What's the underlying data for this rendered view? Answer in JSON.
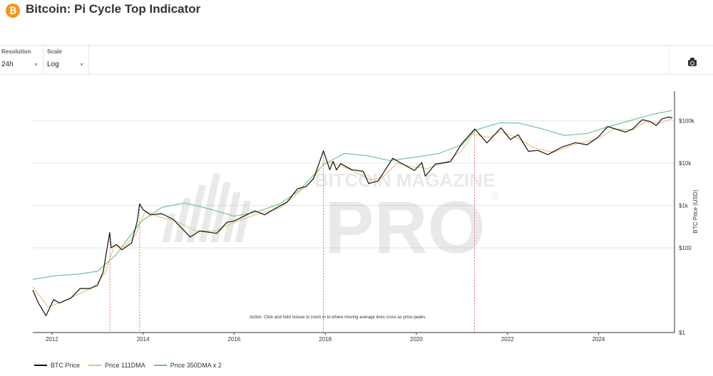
{
  "header": {
    "title": "Bitcoin: Pi Cycle Top Indicator",
    "logo_glyph": "₿",
    "logo_icon": "bitcoin-logo-icon"
  },
  "controls": {
    "resolution": {
      "label": "Resolution",
      "value": "24h"
    },
    "scale": {
      "label": "Scale",
      "value": "Log"
    },
    "camera_icon": "camera-icon"
  },
  "watermark": {
    "line1": "BITCOIN MAGAZINE",
    "line2": "PRO",
    "mark": "®"
  },
  "chart_data": {
    "type": "line",
    "title": "",
    "xlabel": "",
    "ylabel": "BTC Price (USD)",
    "y_scale": "log",
    "x_range": [
      "2011-08-01",
      "2025-09-01"
    ],
    "ylim": [
      1,
      500000
    ],
    "y_ticks": [
      1,
      100,
      1000,
      10000,
      100000
    ],
    "y_tick_labels": [
      "$1",
      "$100",
      "$1k",
      "$10k",
      "$100k"
    ],
    "x_tick_labels": [
      "2012",
      "2014",
      "2016",
      "2018",
      "2020",
      "2022",
      "2024"
    ],
    "annotation": "Action: Click and hold mouse to zoom in to where moving average lines cross as price peaks.",
    "top_signals": [
      "2013-04-10",
      "2013-12-05",
      "2017-12-17",
      "2021-04-12"
    ],
    "legend_position": "bottom-left",
    "grid": "horizontal",
    "series": [
      {
        "name": "BTC Price",
        "color": "#111111",
        "points": [
          [
            "2011-08-01",
            10
          ],
          [
            "2011-09-15",
            5
          ],
          [
            "2011-11-15",
            2.5
          ],
          [
            "2012-01-15",
            6
          ],
          [
            "2012-03-01",
            5
          ],
          [
            "2012-06-01",
            6.5
          ],
          [
            "2012-08-15",
            11
          ],
          [
            "2012-11-01",
            11
          ],
          [
            "2013-01-01",
            13
          ],
          [
            "2013-02-15",
            27
          ],
          [
            "2013-04-09",
            230
          ],
          [
            "2013-04-20",
            100
          ],
          [
            "2013-06-01",
            120
          ],
          [
            "2013-07-15",
            90
          ],
          [
            "2013-10-01",
            130
          ],
          [
            "2013-11-15",
            420
          ],
          [
            "2013-12-05",
            1100
          ],
          [
            "2014-01-01",
            800
          ],
          [
            "2014-03-01",
            600
          ],
          [
            "2014-06-01",
            640
          ],
          [
            "2014-09-01",
            470
          ],
          [
            "2015-01-14",
            180
          ],
          [
            "2015-04-01",
            250
          ],
          [
            "2015-08-15",
            220
          ],
          [
            "2015-11-04",
            400
          ],
          [
            "2016-01-01",
            430
          ],
          [
            "2016-06-15",
            750
          ],
          [
            "2016-09-01",
            600
          ],
          [
            "2016-12-31",
            970
          ],
          [
            "2017-03-01",
            1200
          ],
          [
            "2017-05-25",
            2500
          ],
          [
            "2017-08-01",
            2800
          ],
          [
            "2017-10-01",
            4400
          ],
          [
            "2017-12-17",
            19500
          ],
          [
            "2018-02-06",
            7000
          ],
          [
            "2018-03-05",
            11000
          ],
          [
            "2018-04-01",
            6900
          ],
          [
            "2018-05-05",
            9700
          ],
          [
            "2018-08-01",
            7000
          ],
          [
            "2018-11-01",
            6400
          ],
          [
            "2018-12-15",
            3300
          ],
          [
            "2019-03-01",
            3800
          ],
          [
            "2019-06-26",
            13000
          ],
          [
            "2019-09-01",
            10000
          ],
          [
            "2019-12-17",
            6700
          ],
          [
            "2020-02-14",
            10300
          ],
          [
            "2020-03-13",
            4900
          ],
          [
            "2020-06-01",
            9500
          ],
          [
            "2020-10-01",
            10800
          ],
          [
            "2020-12-31",
            29000
          ],
          [
            "2021-04-14",
            64000
          ],
          [
            "2021-07-20",
            30000
          ],
          [
            "2021-11-10",
            68000
          ],
          [
            "2022-01-24",
            36000
          ],
          [
            "2022-03-28",
            47000
          ],
          [
            "2022-06-18",
            19000
          ],
          [
            "2022-09-01",
            20000
          ],
          [
            "2022-11-21",
            15800
          ],
          [
            "2023-03-15",
            24000
          ],
          [
            "2023-07-01",
            30500
          ],
          [
            "2023-10-01",
            27000
          ],
          [
            "2024-01-01",
            42000
          ],
          [
            "2024-03-14",
            73000
          ],
          [
            "2024-08-05",
            54000
          ],
          [
            "2024-09-30",
            64000
          ],
          [
            "2024-12-17",
            106000
          ],
          [
            "2025-02-15",
            97000
          ],
          [
            "2025-04-08",
            77000
          ],
          [
            "2025-05-22",
            110000
          ],
          [
            "2025-07-14",
            122000
          ],
          [
            "2025-08-15",
            118000
          ]
        ]
      },
      {
        "name": "Price 111DMA",
        "color": "#e8c178",
        "points": [
          [
            "2011-08-01",
            12
          ],
          [
            "2011-12-01",
            4
          ],
          [
            "2012-03-01",
            5
          ],
          [
            "2012-08-01",
            8
          ],
          [
            "2012-12-01",
            12
          ],
          [
            "2013-03-01",
            25
          ],
          [
            "2013-05-15",
            110
          ],
          [
            "2013-08-01",
            105
          ],
          [
            "2013-11-01",
            200
          ],
          [
            "2014-01-20",
            750
          ],
          [
            "2014-05-01",
            550
          ],
          [
            "2014-10-01",
            420
          ],
          [
            "2015-03-01",
            250
          ],
          [
            "2015-08-01",
            250
          ],
          [
            "2016-01-01",
            400
          ],
          [
            "2016-07-01",
            620
          ],
          [
            "2017-01-01",
            870
          ],
          [
            "2017-06-01",
            2000
          ],
          [
            "2017-09-01",
            3500
          ],
          [
            "2018-01-01",
            11000
          ],
          [
            "2018-03-01",
            10000
          ],
          [
            "2018-07-01",
            7400
          ],
          [
            "2019-01-01",
            4000
          ],
          [
            "2019-04-01",
            4500
          ],
          [
            "2019-08-01",
            10000
          ],
          [
            "2019-12-01",
            8200
          ],
          [
            "2020-04-01",
            7500
          ],
          [
            "2020-09-01",
            10500
          ],
          [
            "2021-01-01",
            20000
          ],
          [
            "2021-04-01",
            50000
          ],
          [
            "2021-08-01",
            40000
          ],
          [
            "2021-11-01",
            55000
          ],
          [
            "2022-03-01",
            42000
          ],
          [
            "2022-08-01",
            23000
          ],
          [
            "2023-01-01",
            18000
          ],
          [
            "2023-07-01",
            28000
          ],
          [
            "2024-01-01",
            38000
          ],
          [
            "2024-05-01",
            64000
          ],
          [
            "2024-10-01",
            61000
          ],
          [
            "2025-01-15",
            95000
          ],
          [
            "2025-05-01",
            88000
          ],
          [
            "2025-08-15",
            112000
          ]
        ]
      },
      {
        "name": "Price 350DMA x 2",
        "color": "#6bbf86",
        "points": [
          [
            "2011-08-01",
            18
          ],
          [
            "2012-02-01",
            22
          ],
          [
            "2012-08-01",
            24
          ],
          [
            "2013-01-01",
            28
          ],
          [
            "2013-06-01",
            70
          ],
          [
            "2013-12-15",
            420
          ],
          [
            "2014-06-01",
            900
          ],
          [
            "2014-12-01",
            1150
          ],
          [
            "2015-06-01",
            850
          ],
          [
            "2016-01-01",
            560
          ],
          [
            "2016-07-01",
            700
          ],
          [
            "2017-01-01",
            1100
          ],
          [
            "2017-06-01",
            2200
          ],
          [
            "2017-12-15",
            9000
          ],
          [
            "2018-06-01",
            17000
          ],
          [
            "2018-12-01",
            15000
          ],
          [
            "2019-06-01",
            11500
          ],
          [
            "2020-01-01",
            14000
          ],
          [
            "2020-07-01",
            17000
          ],
          [
            "2021-01-01",
            27000
          ],
          [
            "2021-04-15",
            60000
          ],
          [
            "2021-11-01",
            90000
          ],
          [
            "2022-04-01",
            88000
          ],
          [
            "2022-10-01",
            65000
          ],
          [
            "2023-04-01",
            45000
          ],
          [
            "2023-10-01",
            50000
          ],
          [
            "2024-03-01",
            70000
          ],
          [
            "2024-10-01",
            105000
          ],
          [
            "2025-03-01",
            140000
          ],
          [
            "2025-08-15",
            175000
          ]
        ]
      }
    ]
  }
}
